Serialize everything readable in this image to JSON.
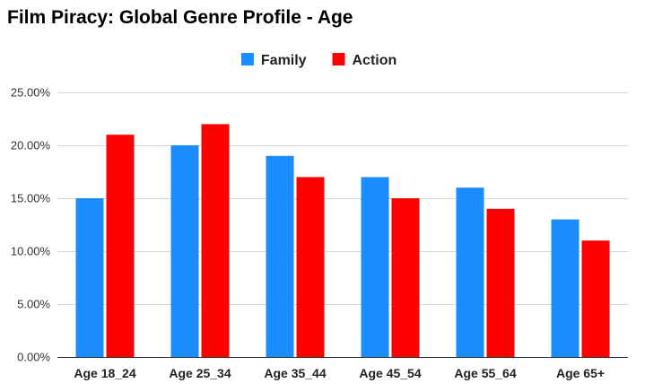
{
  "chart_data": {
    "type": "bar",
    "title": "Film Piracy: Global Genre Profile - Age",
    "categories": [
      "Age 18_24",
      "Age 25_34",
      "Age 35_44",
      "Age 45_54",
      "Age 55_64",
      "Age 65+"
    ],
    "series": [
      {
        "name": "Family",
        "color": "#1a8cff",
        "values": [
          15,
          20,
          19,
          17,
          16,
          13
        ]
      },
      {
        "name": "Action",
        "color": "#ff0000",
        "values": [
          21,
          22,
          17,
          15,
          14,
          11
        ]
      }
    ],
    "xlabel": "",
    "ylabel": "",
    "ylim": [
      0,
      25
    ],
    "yticks": [
      "0.00%",
      "5.00%",
      "10.00%",
      "15.00%",
      "20.00%",
      "25.00%"
    ],
    "grid": true,
    "legend_position": "top-center"
  }
}
